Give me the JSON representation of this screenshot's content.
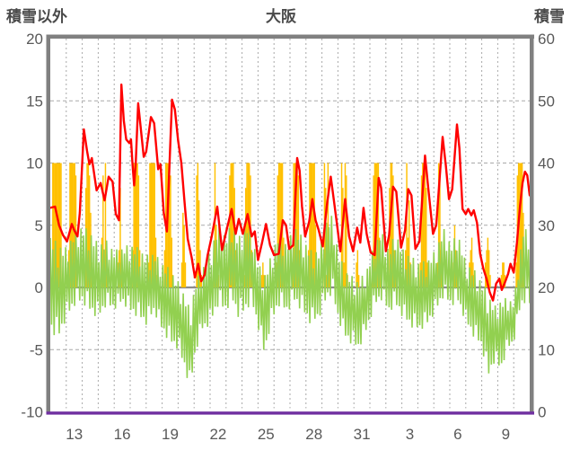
{
  "header": {
    "left_axis_title": "積雪以外",
    "title": "大阪",
    "right_axis_title": "積雪"
  },
  "colors": {
    "temperature_line": "#ff0000",
    "sunshine_bars": "#ffc000",
    "green_series": "#92d050",
    "bottom_axis": "#7030a0",
    "border": "#808080",
    "gridline": "#a9a9a9",
    "zero_line": "#8c8c8c",
    "tick_text": "#595959",
    "header_text": "#4a4a4a"
  },
  "chart_data": {
    "type": "line",
    "title": "大阪",
    "left_axis": {
      "label": "積雪以外",
      "min": -10,
      "max": 20,
      "ticks": [
        20,
        15,
        10,
        5,
        0,
        -5,
        -10
      ]
    },
    "right_axis": {
      "label": "積雪",
      "min": 0,
      "max": 60,
      "ticks": [
        60,
        50,
        40,
        30,
        20,
        10,
        0
      ]
    },
    "x_axis": {
      "span_days": 30,
      "gridline_every_days": 1,
      "tick_labels": [
        "13",
        "16",
        "19",
        "22",
        "25",
        "28",
        "31",
        "3",
        "6",
        "9"
      ],
      "tick_positions_days": [
        1.5,
        4.5,
        7.5,
        10.5,
        13.5,
        16.5,
        19.5,
        22.5,
        25.5,
        28.5
      ]
    },
    "grid": {
      "horizontal_dashed_at": [
        15,
        10,
        5,
        -5
      ],
      "zero_line_at": 0,
      "vertical_dashed": true
    },
    "series": [
      {
        "name": "temperature-red-line",
        "type": "line",
        "color": "#ff0000",
        "points": [
          [
            0,
            6.4
          ],
          [
            0.3,
            6.5
          ],
          [
            0.55,
            5.0
          ],
          [
            0.8,
            4.2
          ],
          [
            1.05,
            3.7
          ],
          [
            1.35,
            5.1
          ],
          [
            1.5,
            4.6
          ],
          [
            1.7,
            4.1
          ],
          [
            1.85,
            6.0
          ],
          [
            2.1,
            12.7
          ],
          [
            2.3,
            11.0
          ],
          [
            2.45,
            9.9
          ],
          [
            2.6,
            10.4
          ],
          [
            2.9,
            7.8
          ],
          [
            3.15,
            8.4
          ],
          [
            3.4,
            7.0
          ],
          [
            3.65,
            8.9
          ],
          [
            3.9,
            8.5
          ],
          [
            4.1,
            5.9
          ],
          [
            4.3,
            5.4
          ],
          [
            4.45,
            16.3
          ],
          [
            4.6,
            13.4
          ],
          [
            4.75,
            11.9
          ],
          [
            4.95,
            11.6
          ],
          [
            5.05,
            11.9
          ],
          [
            5.15,
            9.8
          ],
          [
            5.25,
            8.2
          ],
          [
            5.35,
            10.0
          ],
          [
            5.5,
            14.8
          ],
          [
            5.7,
            12.3
          ],
          [
            5.85,
            10.5
          ],
          [
            6.0,
            10.9
          ],
          [
            6.3,
            13.7
          ],
          [
            6.5,
            13.2
          ],
          [
            6.75,
            9.5
          ],
          [
            6.9,
            9.9
          ],
          [
            7.1,
            6.0
          ],
          [
            7.3,
            4.5
          ],
          [
            7.62,
            15.1
          ],
          [
            7.8,
            14.3
          ],
          [
            8.0,
            11.8
          ],
          [
            8.2,
            10.0
          ],
          [
            8.4,
            6.9
          ],
          [
            8.6,
            3.9
          ],
          [
            8.85,
            2.4
          ],
          [
            9.05,
            0.8
          ],
          [
            9.25,
            1.9
          ],
          [
            9.45,
            0.5
          ],
          [
            9.65,
            1.0
          ],
          [
            9.85,
            2.6
          ],
          [
            10.1,
            4.1
          ],
          [
            10.45,
            6.5
          ],
          [
            10.75,
            3.0
          ],
          [
            11.05,
            4.7
          ],
          [
            11.35,
            6.3
          ],
          [
            11.6,
            4.3
          ],
          [
            11.8,
            5.5
          ],
          [
            12.05,
            4.3
          ],
          [
            12.35,
            5.9
          ],
          [
            12.6,
            4.1
          ],
          [
            12.8,
            4.5
          ],
          [
            13.0,
            2.2
          ],
          [
            13.25,
            3.6
          ],
          [
            13.5,
            5.1
          ],
          [
            13.75,
            3.4
          ],
          [
            14.0,
            2.6
          ],
          [
            14.3,
            2.7
          ],
          [
            14.55,
            5.4
          ],
          [
            14.75,
            5.0
          ],
          [
            14.95,
            3.1
          ],
          [
            15.2,
            3.4
          ],
          [
            15.45,
            10.4
          ],
          [
            15.6,
            9.4
          ],
          [
            15.75,
            6.5
          ],
          [
            15.95,
            4.1
          ],
          [
            16.2,
            5.3
          ],
          [
            16.4,
            7.1
          ],
          [
            16.6,
            5.4
          ],
          [
            16.8,
            4.6
          ],
          [
            17.05,
            3.3
          ],
          [
            17.3,
            6.5
          ],
          [
            17.55,
            8.9
          ],
          [
            17.75,
            7.0
          ],
          [
            17.95,
            5.0
          ],
          [
            18.15,
            2.9
          ],
          [
            18.45,
            7.1
          ],
          [
            18.7,
            4.1
          ],
          [
            18.95,
            2.9
          ],
          [
            19.2,
            4.8
          ],
          [
            19.4,
            3.6
          ],
          [
            19.6,
            6.4
          ],
          [
            19.8,
            4.3
          ],
          [
            20.05,
            2.8
          ],
          [
            20.3,
            2.6
          ],
          [
            20.55,
            8.8
          ],
          [
            20.7,
            8.0
          ],
          [
            21.0,
            2.9
          ],
          [
            21.2,
            4.2
          ],
          [
            21.45,
            8.1
          ],
          [
            21.65,
            7.7
          ],
          [
            21.95,
            3.2
          ],
          [
            22.2,
            4.6
          ],
          [
            22.4,
            7.9
          ],
          [
            22.6,
            7.4
          ],
          [
            22.85,
            3.1
          ],
          [
            23.1,
            3.7
          ],
          [
            23.45,
            10.6
          ],
          [
            23.65,
            8.0
          ],
          [
            23.95,
            4.3
          ],
          [
            24.15,
            5.0
          ],
          [
            24.55,
            12.1
          ],
          [
            24.75,
            9.8
          ],
          [
            24.95,
            7.1
          ],
          [
            25.15,
            7.9
          ],
          [
            25.45,
            13.1
          ],
          [
            25.6,
            11.2
          ],
          [
            25.8,
            6.3
          ],
          [
            26.0,
            5.9
          ],
          [
            26.15,
            6.3
          ],
          [
            26.35,
            5.8
          ],
          [
            26.5,
            6.2
          ],
          [
            26.7,
            5.2
          ],
          [
            26.9,
            2.7
          ],
          [
            27.1,
            1.5
          ],
          [
            27.3,
            0.7
          ],
          [
            27.5,
            -0.4
          ],
          [
            27.7,
            -1.05
          ],
          [
            27.9,
            0.3
          ],
          [
            28.1,
            0.7
          ],
          [
            28.25,
            -0.2
          ],
          [
            28.45,
            0.4
          ],
          [
            28.65,
            1.1
          ],
          [
            28.8,
            1.9
          ],
          [
            29.0,
            1.2
          ],
          [
            29.2,
            3.6
          ],
          [
            29.4,
            6.6
          ],
          [
            29.55,
            8.4
          ],
          [
            29.7,
            9.3
          ],
          [
            29.85,
            9.0
          ],
          [
            30,
            7.4
          ]
        ]
      },
      {
        "name": "sunshine-gold-bars",
        "type": "hourly-bars",
        "color": "#ffc000",
        "bar_max": 10,
        "days": [
          [
            10,
            10,
            10,
            10,
            10,
            10,
            10,
            10
          ],
          [
            3,
            10,
            10,
            10,
            10,
            10,
            9,
            2
          ],
          [
            1,
            8,
            10,
            10,
            9,
            6,
            2,
            0
          ],
          [
            0,
            4,
            9,
            3,
            10,
            2,
            1,
            0
          ],
          [
            0,
            2,
            3,
            8,
            2,
            1,
            0,
            0
          ],
          [
            3,
            10,
            10,
            10,
            10,
            9,
            3,
            0
          ],
          [
            2,
            10,
            10,
            10,
            10,
            10,
            4,
            1
          ],
          [
            3,
            10,
            10,
            10,
            10,
            9,
            4,
            1
          ],
          [
            0,
            2,
            6,
            5,
            2,
            0,
            0,
            0
          ],
          [
            9,
            10,
            7,
            3,
            1,
            0,
            0,
            0
          ],
          [
            0,
            3,
            10,
            5,
            2,
            1,
            0,
            0
          ],
          [
            2,
            9,
            10,
            10,
            10,
            8,
            3,
            0
          ],
          [
            1,
            8,
            10,
            10,
            10,
            9,
            3,
            0
          ],
          [
            0,
            1,
            2,
            1,
            1,
            0,
            0,
            0
          ],
          [
            2,
            9,
            10,
            10,
            10,
            10,
            4,
            1
          ],
          [
            2,
            10,
            10,
            10,
            10,
            9,
            3,
            0
          ],
          [
            3,
            10,
            10,
            10,
            10,
            10,
            5,
            1
          ],
          [
            10,
            8,
            1,
            10,
            2,
            0,
            0,
            0
          ],
          [
            0,
            10,
            8,
            2,
            10,
            9,
            1,
            0
          ],
          [
            2,
            3,
            1,
            0,
            0,
            0,
            0,
            0
          ],
          [
            2,
            9,
            10,
            10,
            10,
            10,
            4,
            1
          ],
          [
            1,
            8,
            10,
            10,
            9,
            3,
            1,
            0
          ],
          [
            0,
            3,
            10,
            4,
            7,
            2,
            0,
            0
          ],
          [
            2,
            9,
            10,
            10,
            10,
            8,
            2,
            0
          ],
          [
            0,
            2,
            10,
            9,
            3,
            1,
            0,
            0
          ],
          [
            0,
            2,
            5,
            3,
            2,
            1,
            0,
            0
          ],
          [
            0,
            2,
            3,
            4,
            2,
            1,
            0,
            0
          ],
          [
            0,
            2,
            3,
            4,
            3,
            1,
            0,
            0
          ],
          [
            0,
            1,
            2,
            2,
            1,
            0,
            0,
            0
          ],
          [
            2,
            9,
            10,
            10,
            10,
            10,
            6,
            1
          ]
        ]
      },
      {
        "name": "green-spiky-line",
        "type": "zigzag-line",
        "color": "#92d050",
        "envelope": [
          [
            0,
            4.2,
            -3.5
          ],
          [
            0.5,
            3.5,
            -4.2
          ],
          [
            1,
            3.2,
            -2.5
          ],
          [
            1.5,
            4.5,
            -1.5
          ],
          [
            2,
            5.0,
            -1.2
          ],
          [
            2.5,
            4.5,
            -2.0
          ],
          [
            3,
            3.5,
            -2.5
          ],
          [
            3.5,
            3.8,
            -1.5
          ],
          [
            4,
            3.0,
            -1.8
          ],
          [
            4.5,
            3.2,
            -1.2
          ],
          [
            5,
            3.5,
            -2.0
          ],
          [
            5.5,
            3.2,
            -2.4
          ],
          [
            6,
            2.6,
            -3.0
          ],
          [
            6.5,
            2.8,
            -2.0
          ],
          [
            7,
            2.0,
            -3.5
          ],
          [
            7.5,
            1.5,
            -4.5
          ],
          [
            8,
            0.5,
            -5.0
          ],
          [
            8.4,
            -0.5,
            -6.5
          ],
          [
            8.75,
            -1.8,
            -8.2
          ],
          [
            9.1,
            0.5,
            -5.2
          ],
          [
            9.5,
            1.5,
            -3.5
          ],
          [
            10,
            3.0,
            -3.0
          ],
          [
            10.5,
            5.0,
            -1.5
          ],
          [
            11,
            4.2,
            -2.0
          ],
          [
            11.35,
            5.2,
            -1.0
          ],
          [
            11.8,
            4.0,
            -2.5
          ],
          [
            12.2,
            5.5,
            -2.0
          ],
          [
            12.6,
            4.5,
            -1.2
          ],
          [
            13.0,
            2.0,
            -3.2
          ],
          [
            13.4,
            1.0,
            -5.5
          ],
          [
            13.8,
            2.5,
            -3.0
          ],
          [
            14.3,
            4.5,
            -1.5
          ],
          [
            14.8,
            3.5,
            -2.0
          ],
          [
            15.3,
            5.0,
            -1.2
          ],
          [
            15.8,
            4.0,
            -2.0
          ],
          [
            16.3,
            3.0,
            -3.0
          ],
          [
            16.8,
            3.0,
            -2.5
          ],
          [
            17.3,
            5.5,
            -1.0
          ],
          [
            17.65,
            5.8,
            -0.5
          ],
          [
            18.0,
            3.0,
            -2.5
          ],
          [
            18.4,
            1.5,
            -4.0
          ],
          [
            18.8,
            1.0,
            -4.5
          ],
          [
            19.3,
            0.5,
            -5.0
          ],
          [
            19.8,
            1.5,
            -3.5
          ],
          [
            20.3,
            3.5,
            -1.5
          ],
          [
            20.7,
            4.6,
            -1.0
          ],
          [
            21.2,
            3.0,
            -2.0
          ],
          [
            21.6,
            4.5,
            -1.5
          ],
          [
            22.1,
            3.0,
            -2.5
          ],
          [
            22.6,
            2.5,
            -3.2
          ],
          [
            23.1,
            2.0,
            -3.5
          ],
          [
            23.6,
            2.2,
            -3.0
          ],
          [
            24.1,
            3.0,
            -2.0
          ],
          [
            24.6,
            4.8,
            -0.8
          ],
          [
            25.1,
            3.5,
            -1.5
          ],
          [
            25.5,
            4.5,
            -1.2
          ],
          [
            26.0,
            2.0,
            -2.8
          ],
          [
            26.5,
            1.5,
            -4.0
          ],
          [
            27.0,
            0.5,
            -4.8
          ],
          [
            27.4,
            -0.5,
            -7.3
          ],
          [
            27.8,
            -1.5,
            -6.0
          ],
          [
            28.2,
            -1.0,
            -6.7
          ],
          [
            28.6,
            -0.8,
            -5.0
          ],
          [
            29.0,
            -1.2,
            -4.5
          ],
          [
            29.3,
            1.8,
            -2.2
          ],
          [
            29.6,
            4.8,
            -1.2
          ],
          [
            30,
            4.5,
            -1.5
          ]
        ]
      }
    ]
  }
}
